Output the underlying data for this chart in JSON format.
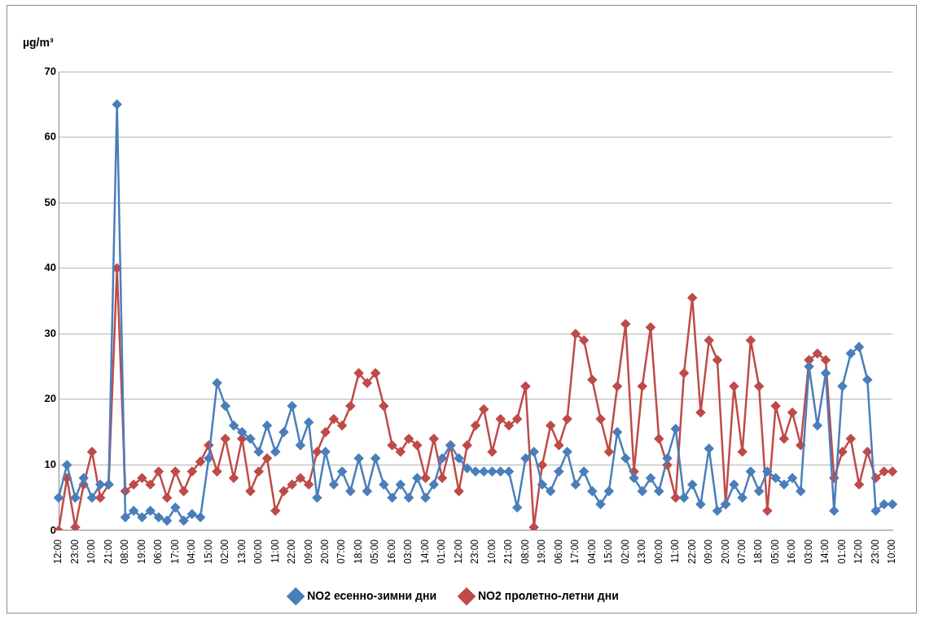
{
  "chart_data": {
    "type": "line",
    "ylabel": "µg/m³",
    "legend": "bottom",
    "grid": "y",
    "marker": "diamond",
    "line_style": "solid",
    "ylim": [
      0,
      70
    ],
    "yticks": [
      0,
      10,
      20,
      30,
      40,
      50,
      60,
      70
    ],
    "categories": [
      "12:00",
      null,
      "23:00",
      null,
      "10:00",
      null,
      "21:00",
      null,
      "08:00",
      null,
      "19:00",
      null,
      "06:00",
      null,
      "17:00",
      null,
      "04:00",
      null,
      "15:00",
      null,
      "02:00",
      null,
      "13:00",
      null,
      "00:00",
      null,
      "11:00",
      null,
      "22:00",
      null,
      "09:00",
      null,
      "20:00",
      null,
      "07:00",
      null,
      "18:00",
      null,
      "05:00",
      null,
      "16:00",
      null,
      "03:00",
      null,
      "14:00",
      null,
      "01:00",
      null,
      "12:00",
      null,
      "23:00",
      null,
      "10:00",
      null,
      "21:00",
      null,
      "08:00",
      null,
      "19:00",
      null,
      "06:00",
      null,
      "17:00",
      null,
      "04:00",
      null,
      "15:00",
      null,
      "02:00",
      null,
      "13:00",
      null,
      "00:00",
      null,
      "11:00",
      null,
      "22:00",
      null,
      "09:00",
      null,
      "20:00",
      null,
      "07:00",
      null,
      "18:00",
      null,
      "05:00",
      null,
      "16:00",
      null,
      "03:00",
      null,
      "14:00",
      null,
      "01:00",
      null,
      "12:00",
      null,
      "23:00",
      null,
      "10:00"
    ],
    "series": [
      {
        "name": "NO2 есенно-зимни дни",
        "color": "#4a7ebb",
        "values": [
          5,
          10,
          5,
          8,
          5,
          7,
          7,
          65,
          2,
          3,
          2,
          3,
          2,
          1.5,
          3.5,
          1.5,
          2.5,
          2,
          11,
          22.5,
          19,
          16,
          15,
          14,
          12,
          16,
          12,
          15,
          19,
          13,
          16.5,
          5,
          12,
          7,
          9,
          6,
          11,
          6,
          11,
          7,
          5,
          7,
          5,
          8,
          5,
          7,
          11,
          13,
          11,
          9.5,
          9,
          9,
          9,
          9,
          9,
          3.5,
          11,
          12,
          7,
          6,
          9,
          12,
          7,
          9,
          6,
          4,
          6,
          15,
          11,
          8,
          6,
          8,
          6,
          11,
          15.5,
          5,
          7,
          4,
          12.5,
          3,
          4,
          7,
          5,
          9,
          6,
          9,
          8,
          7,
          8,
          6,
          25,
          16,
          24,
          3,
          22,
          27,
          28,
          23,
          3,
          4,
          4
        ]
      },
      {
        "name": "NO2 пролетно-летни дни",
        "color": "#be4b48",
        "values": [
          0,
          8,
          0.5,
          7,
          12,
          5,
          7,
          40,
          6,
          7,
          8,
          7,
          9,
          5,
          9,
          6,
          9,
          10.5,
          13,
          9,
          14,
          8,
          14,
          6,
          9,
          11,
          3,
          6,
          7,
          8,
          7,
          12,
          15,
          17,
          16,
          19,
          24,
          22.5,
          24,
          19,
          13,
          12,
          14,
          13,
          8,
          14,
          8,
          13,
          6,
          13,
          16,
          18.5,
          12,
          17,
          16,
          17,
          22,
          0.5,
          10,
          16,
          13,
          17,
          30,
          29,
          23,
          17,
          12,
          22,
          31.5,
          9,
          22,
          31,
          14,
          10,
          5,
          24,
          35.5,
          18,
          29,
          26,
          4,
          22,
          12,
          29,
          22,
          3,
          19,
          14,
          18,
          13,
          26,
          27,
          26,
          8,
          12,
          14,
          7,
          12,
          8,
          9,
          9
        ]
      }
    ]
  }
}
